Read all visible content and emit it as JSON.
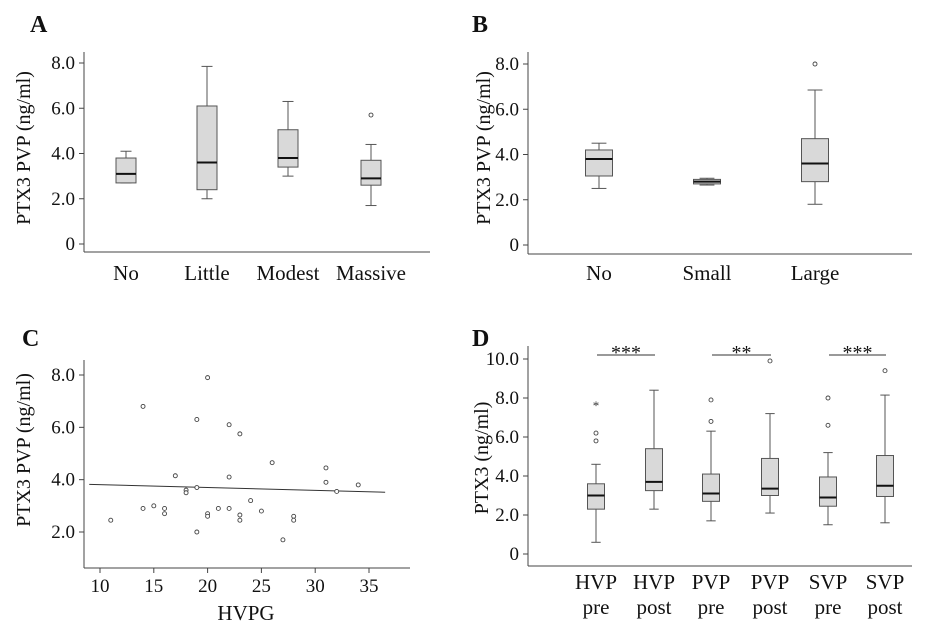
{
  "chart_data": [
    {
      "panel": "A",
      "type": "box",
      "ylabel": "PTX3 PVP (ng/ml)",
      "yticks": [
        "0",
        "2.0",
        "4.0",
        "6.0",
        "8.0"
      ],
      "ylim": [
        0,
        8
      ],
      "categories": [
        "No",
        "Little",
        "Modest",
        "Massive"
      ],
      "boxes": [
        {
          "min": 2.7,
          "q1": 2.7,
          "median": 3.1,
          "q3": 3.8,
          "max": 4.1,
          "outliers": []
        },
        {
          "min": 2.0,
          "q1": 2.4,
          "median": 3.6,
          "q3": 6.1,
          "max": 7.85,
          "outliers": []
        },
        {
          "min": 3.0,
          "q1": 3.4,
          "median": 3.8,
          "q3": 5.05,
          "max": 6.3,
          "outliers": []
        },
        {
          "min": 1.7,
          "q1": 2.6,
          "median": 2.9,
          "q3": 3.7,
          "max": 4.4,
          "outliers": [
            5.7
          ]
        }
      ]
    },
    {
      "panel": "B",
      "type": "box",
      "ylabel": "PTX3 PVP (ng/ml)",
      "yticks": [
        "0",
        "2.0",
        "4.0",
        "6.0",
        "8.0"
      ],
      "ylim": [
        0,
        8
      ],
      "categories": [
        "No",
        "Small",
        "Large"
      ],
      "boxes": [
        {
          "min": 2.5,
          "q1": 3.05,
          "median": 3.8,
          "q3": 4.2,
          "max": 4.5,
          "outliers": []
        },
        {
          "min": 2.65,
          "q1": 2.7,
          "median": 2.8,
          "q3": 2.9,
          "max": 2.95,
          "outliers": []
        },
        {
          "min": 1.8,
          "q1": 2.8,
          "median": 3.6,
          "q3": 4.7,
          "max": 6.85,
          "outliers": [
            8.0
          ]
        }
      ]
    },
    {
      "panel": "C",
      "type": "scatter",
      "ylabel": "PTX3 PVP (ng/ml)",
      "xlabel": "HVPG",
      "xticks": [
        "10",
        "15",
        "20",
        "25",
        "30",
        "35"
      ],
      "yticks": [
        "2.0",
        "4.0",
        "6.0",
        "8.0"
      ],
      "xlim": [
        9,
        36.5
      ],
      "ylim": [
        1.4,
        8.4
      ],
      "points": [
        [
          11,
          2.45
        ],
        [
          14,
          6.8
        ],
        [
          14,
          2.9
        ],
        [
          15,
          3.0
        ],
        [
          16,
          2.9
        ],
        [
          16,
          2.7
        ],
        [
          17,
          4.15
        ],
        [
          18,
          3.6
        ],
        [
          18,
          3.5
        ],
        [
          19,
          6.3
        ],
        [
          19,
          3.7
        ],
        [
          19,
          2.0
        ],
        [
          20,
          7.9
        ],
        [
          20,
          2.7
        ],
        [
          20,
          2.6
        ],
        [
          21,
          2.9
        ],
        [
          22,
          6.1
        ],
        [
          22,
          4.1
        ],
        [
          22,
          2.9
        ],
        [
          23,
          5.75
        ],
        [
          23,
          2.65
        ],
        [
          23,
          2.45
        ],
        [
          24,
          3.2
        ],
        [
          25,
          2.8
        ],
        [
          26,
          4.65
        ],
        [
          27,
          1.7
        ],
        [
          28,
          2.6
        ],
        [
          28,
          2.45
        ],
        [
          31,
          4.45
        ],
        [
          31,
          3.9
        ],
        [
          32,
          3.55
        ],
        [
          34,
          3.8
        ]
      ],
      "trendline": {
        "x": [
          9,
          36.5
        ],
        "y": [
          3.82,
          3.52
        ]
      }
    },
    {
      "panel": "D",
      "type": "box",
      "ylabel": "PTX3  (ng/ml)",
      "yticks": [
        "0",
        "2.0",
        "4.0",
        "6.0",
        "8.0",
        "10.0"
      ],
      "ylim": [
        0,
        10
      ],
      "categories": [
        {
          "line1": "HVP",
          "line2": "pre"
        },
        {
          "line1": "HVP",
          "line2": "post"
        },
        {
          "line1": "PVP",
          "line2": "pre"
        },
        {
          "line1": "PVP",
          "line2": "post"
        },
        {
          "line1": "SVP",
          "line2": "pre"
        },
        {
          "line1": "SVP",
          "line2": "post"
        }
      ],
      "boxes": [
        {
          "min": 0.6,
          "q1": 2.3,
          "median": 3.0,
          "q3": 3.6,
          "max": 4.6,
          "outliers": [
            5.8,
            6.2
          ],
          "extremes": [
            7.7
          ]
        },
        {
          "min": 2.3,
          "q1": 3.25,
          "median": 3.7,
          "q3": 5.4,
          "max": 8.4,
          "outliers": [],
          "extremes": []
        },
        {
          "min": 1.7,
          "q1": 2.7,
          "median": 3.1,
          "q3": 4.1,
          "max": 6.3,
          "outliers": [
            6.8,
            7.9
          ],
          "extremes": []
        },
        {
          "min": 2.1,
          "q1": 3.0,
          "median": 3.35,
          "q3": 4.9,
          "max": 7.2,
          "outliers": [
            9.9
          ],
          "extremes": []
        },
        {
          "min": 1.5,
          "q1": 2.45,
          "median": 2.9,
          "q3": 3.95,
          "max": 5.2,
          "outliers": [
            6.6,
            8.0
          ],
          "extremes": []
        },
        {
          "min": 1.6,
          "q1": 2.95,
          "median": 3.5,
          "q3": 5.05,
          "max": 8.15,
          "outliers": [
            9.4
          ],
          "extremes": []
        }
      ],
      "significance": [
        {
          "from": 0,
          "to": 1,
          "label": "***"
        },
        {
          "from": 2,
          "to": 3,
          "label": "**"
        },
        {
          "from": 4,
          "to": 5,
          "label": "***"
        }
      ]
    }
  ]
}
